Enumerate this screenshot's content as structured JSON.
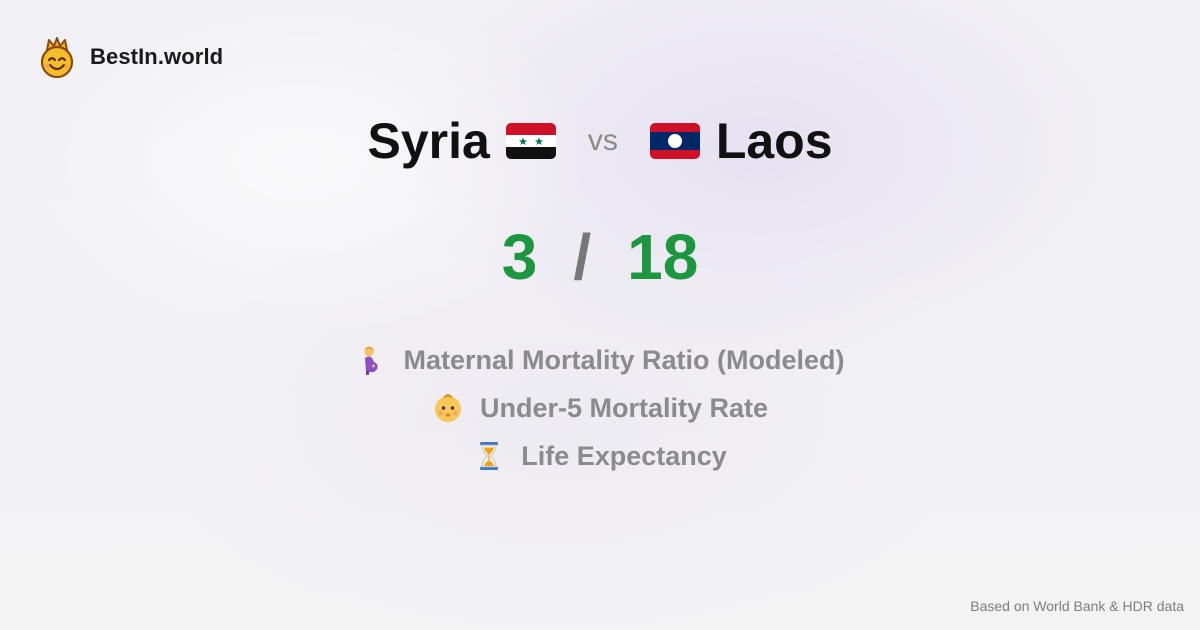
{
  "brand": {
    "name": "BestIn.world",
    "logo_icon": "crowned-smiley-icon"
  },
  "comparison": {
    "left_country": "Syria",
    "left_flag": "syria-flag-icon",
    "vs_label": "vs",
    "right_country": "Laos",
    "right_flag": "laos-flag-icon"
  },
  "score": {
    "left": "3",
    "separator": "/",
    "right": "18",
    "color": "#1d9640"
  },
  "metrics": [
    {
      "icon": "pregnant-woman-icon",
      "label": "Maternal Mortality Ratio (Modeled)"
    },
    {
      "icon": "baby-face-icon",
      "label": "Under-5 Mortality Rate"
    },
    {
      "icon": "hourglass-icon",
      "label": "Life Expectancy"
    }
  ],
  "footer": {
    "source_text": "Based on World Bank & HDR data"
  }
}
